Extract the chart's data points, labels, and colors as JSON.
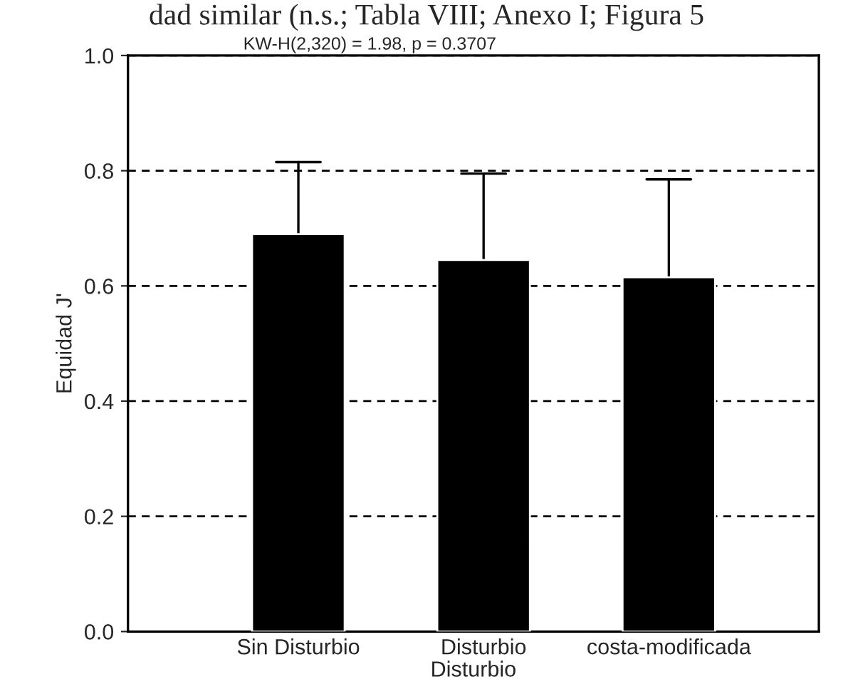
{
  "chart_data": {
    "type": "bar",
    "title": "KW-H(2,320) = 1.98, p = 0.3707",
    "xlabel": "Disturbio",
    "ylabel": "Equidad J'",
    "annotations": [
      "dad similar (n.s.; Tabla VIII; Anexo I; Figura 5"
    ],
    "categories": [
      "Sin Disturbio",
      "Disturbio",
      "costa-modificada"
    ],
    "values": [
      0.69,
      0.645,
      0.615
    ],
    "color": "#000000",
    "errors": [
      [
        0.69,
        0.815
      ],
      [
        0.645,
        0.795
      ],
      [
        0.615,
        0.785
      ]
    ],
    "ylim": [
      0,
      1
    ],
    "yticks": [
      {
        "value": 0,
        "label": "0.0"
      },
      {
        "value": 0.2,
        "label": "0.2"
      },
      {
        "value": 0.4,
        "label": "0.4"
      },
      {
        "value": 0.6,
        "label": "0.6"
      },
      {
        "value": 0.8,
        "label": "0.8"
      },
      {
        "value": 1,
        "label": "1.0"
      }
    ],
    "grid": "y"
  }
}
